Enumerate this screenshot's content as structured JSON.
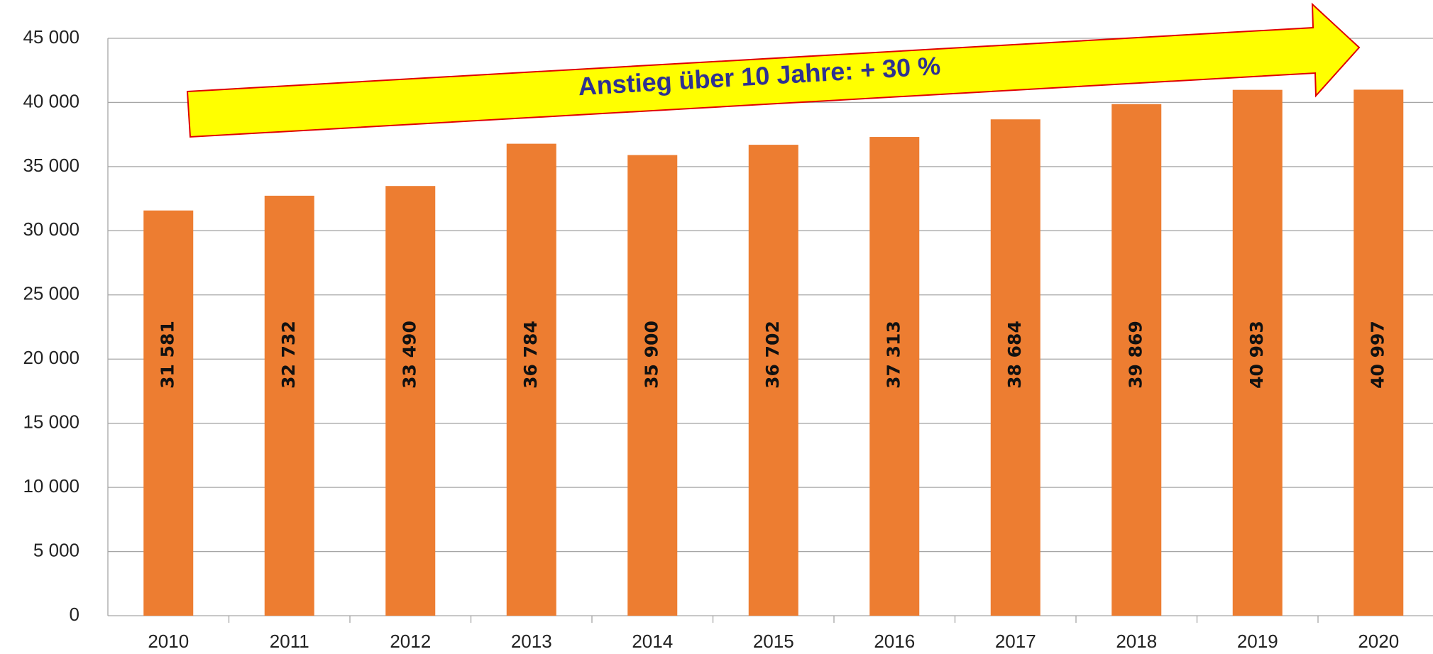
{
  "chart_data": {
    "type": "bar",
    "annotation": "Anstieg über 10 Jahre: + 30 %",
    "categories": [
      "2010",
      "2011",
      "2012",
      "2013",
      "2014",
      "2015",
      "2016",
      "2017",
      "2018",
      "2019",
      "2020"
    ],
    "values": [
      31581,
      32732,
      33490,
      36784,
      35900,
      36702,
      37313,
      38684,
      39869,
      40983,
      40997
    ],
    "value_labels": [
      "31 581",
      "32 732",
      "33 490",
      "36 784",
      "35 900",
      "36 702",
      "37 313",
      "38 684",
      "39 869",
      "40 983",
      "40 997"
    ],
    "color": "#ed7d31",
    "ylim": [
      0,
      45000
    ],
    "yticks": [
      0,
      {
        "value": 5000,
        "label": "5 000"
      },
      {
        "value": 10000,
        "label": "10 000"
      },
      {
        "value": 15000,
        "label": "15 000"
      },
      {
        "value": 20000,
        "label": "20 000"
      },
      {
        "value": 25000,
        "label": "25 000"
      },
      {
        "value": 30000,
        "label": "30 000"
      },
      {
        "value": 35000,
        "label": "35 000"
      },
      {
        "value": 40000,
        "label": "40 000"
      },
      {
        "value": 45000,
        "label": "45 000"
      }
    ],
    "grid": true
  }
}
